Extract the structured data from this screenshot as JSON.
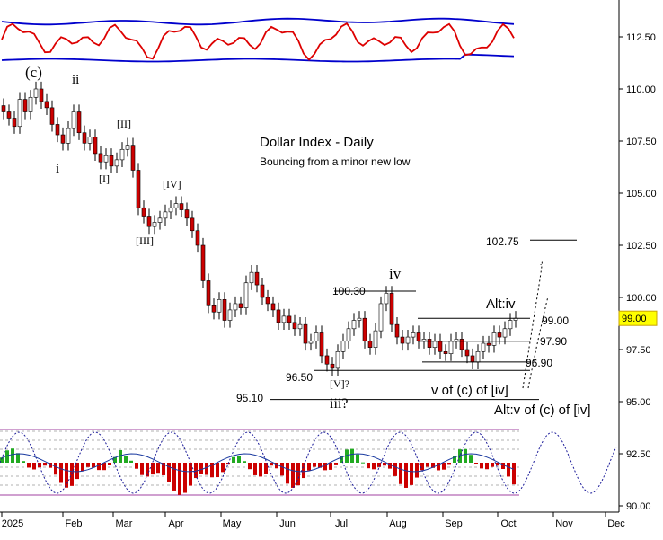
{
  "chart_data": {
    "type": "candlestick",
    "title": "Dollar Index - Daily",
    "subtitle": "Bouncing from a minor new low",
    "y_axis": {
      "ticks": [
        90.0,
        92.5,
        95.0,
        97.5,
        100.0,
        102.5,
        105.0,
        107.5,
        110.0,
        112.5
      ],
      "tick_labels": [
        "90.00",
        "92.50",
        "95.00",
        "97.50",
        "100.00",
        "102.50",
        "105.00",
        "107.50",
        "110.00",
        "112.50"
      ],
      "range": [
        89.8,
        114.2
      ],
      "side": "right"
    },
    "x_axis": {
      "labels": [
        "2025",
        "Feb",
        "Mar",
        "Apr",
        "May",
        "Jun",
        "Jul",
        "Aug",
        "Sep",
        "Oct",
        "Nov",
        "Dec"
      ]
    },
    "current_price": {
      "value": 99.0,
      "label": "99.00",
      "color": "#ffff00"
    },
    "closes": [
      108.9,
      108.6,
      108.2,
      109.5,
      108.9,
      109.6,
      110.0,
      109.4,
      109.1,
      108.3,
      107.8,
      107.4,
      108.1,
      108.9,
      107.9,
      107.4,
      107.7,
      106.9,
      106.5,
      106.8,
      106.3,
      106.6,
      107.1,
      107.3,
      106.1,
      104.3,
      103.9,
      103.4,
      103.6,
      103.8,
      104.1,
      104.3,
      104.5,
      104.2,
      103.8,
      103.2,
      102.5,
      100.8,
      99.6,
      99.3,
      99.9,
      98.9,
      99.4,
      99.7,
      99.5,
      100.7,
      101.2,
      100.6,
      100.0,
      99.7,
      99.4,
      98.8,
      99.1,
      98.8,
      98.5,
      98.7,
      97.8,
      97.9,
      98.3,
      97.2,
      96.8,
      96.6,
      97.4,
      97.9,
      98.5,
      98.9,
      99.0,
      97.9,
      97.6,
      98.4,
      99.7,
      100.2,
      98.7,
      98.1,
      97.8,
      98.1,
      98.3,
      97.9,
      98.0,
      97.6,
      97.9,
      97.4,
      97.3,
      97.9,
      98.0,
      97.5,
      97.2,
      96.9,
      97.4,
      97.8,
      97.7,
      98.3,
      98.1,
      98.5,
      98.9,
      99.0
    ],
    "swing_points": [
      {
        "label": "(c)",
        "value": 110.2
      },
      {
        "label": "ii",
        "value": 109.9
      },
      {
        "label": "i",
        "value": 106.9
      },
      {
        "label": "[II]",
        "value": 107.6
      },
      {
        "label": "[I]",
        "value": 105.9
      },
      {
        "label": "[IV]",
        "value": 104.7
      },
      {
        "label": "[III]",
        "value": 103.2
      },
      {
        "label": "iv",
        "value": 100.3
      },
      {
        "label": "[V]?",
        "value": 96.5
      },
      {
        "label": "iii?",
        "value": 96.5
      }
    ],
    "price_levels": [
      {
        "label": "102.75",
        "value": 102.75
      },
      {
        "label": "100.30",
        "value": 100.3
      },
      {
        "label": "99.00",
        "value": 99.0
      },
      {
        "label": "97.90",
        "value": 97.9
      },
      {
        "label": "96.90",
        "value": 96.9
      },
      {
        "label": "96.50",
        "value": 96.5
      },
      {
        "label": "95.10",
        "value": 95.1
      }
    ],
    "annotations": {
      "alt_iv": "Alt:iv",
      "target": "v of (c) of [iv]",
      "alt_target": "Alt:v of (c) of [iv]"
    },
    "colors": {
      "down_candle": "#cc0000",
      "up_candle": "#ffffff",
      "upper_osc": "#dd0000",
      "bands": "#0000cc",
      "hist_pos": "#22aa22",
      "hist_neg": "#cc0000",
      "cycle": "#1a1a99",
      "alt_text": "#8b1a1a"
    }
  }
}
